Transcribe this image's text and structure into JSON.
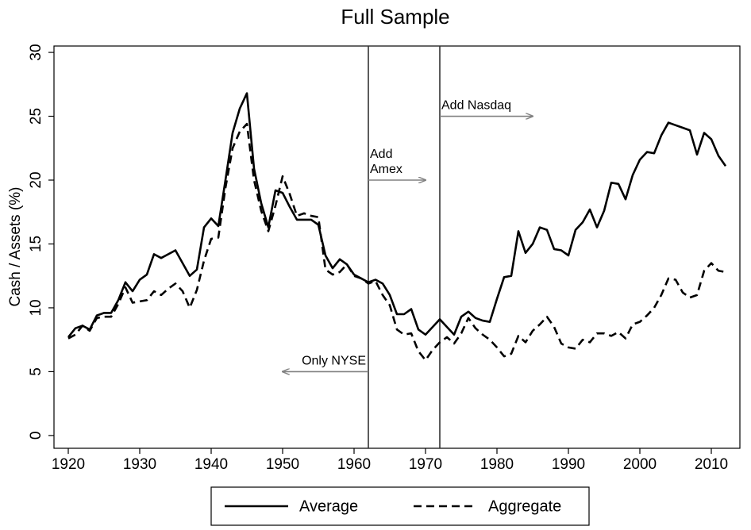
{
  "chart_data": {
    "type": "line",
    "title": "Full Sample",
    "y_label": "Cash / Assets (%)",
    "x": [
      1920,
      1921,
      1922,
      1923,
      1924,
      1925,
      1926,
      1927,
      1928,
      1929,
      1930,
      1931,
      1932,
      1933,
      1934,
      1935,
      1936,
      1937,
      1938,
      1939,
      1940,
      1941,
      1942,
      1943,
      1944,
      1945,
      1946,
      1947,
      1948,
      1949,
      1950,
      1951,
      1952,
      1953,
      1954,
      1955,
      1956,
      1957,
      1958,
      1959,
      1960,
      1961,
      1962,
      1963,
      1964,
      1965,
      1966,
      1967,
      1968,
      1969,
      1970,
      1971,
      1972,
      1973,
      1974,
      1975,
      1976,
      1977,
      1978,
      1979,
      1980,
      1981,
      1982,
      1983,
      1984,
      1985,
      1986,
      1987,
      1988,
      1989,
      1990,
      1991,
      1992,
      1993,
      1994,
      1995,
      1996,
      1997,
      1998,
      1999,
      2000,
      2001,
      2002,
      2003,
      2004,
      2005,
      2006,
      2007,
      2008,
      2009,
      2010,
      2011,
      2012
    ],
    "series": [
      {
        "name": "Average",
        "color": "#000000",
        "dash": "solid",
        "values": [
          7.7,
          8.4,
          8.6,
          8.3,
          9.4,
          9.6,
          9.6,
          10.6,
          12.0,
          11.3,
          12.2,
          12.6,
          14.2,
          13.9,
          14.2,
          14.5,
          13.5,
          12.5,
          13.0,
          16.3,
          17.0,
          16.4,
          20.0,
          23.7,
          25.6,
          26.8,
          20.9,
          18.2,
          16.3,
          19.2,
          19.0,
          17.9,
          16.9,
          16.9,
          16.9,
          16.5,
          14.1,
          13.1,
          13.8,
          13.4,
          12.6,
          12.3,
          12.0,
          12.2,
          11.9,
          11.0,
          9.5,
          9.5,
          9.9,
          8.3,
          7.9,
          8.5,
          9.1,
          8.5,
          7.9,
          9.3,
          9.7,
          9.2,
          9.0,
          8.9,
          10.7,
          12.4,
          12.5,
          16.0,
          14.3,
          15.0,
          16.3,
          16.1,
          14.6,
          14.5,
          14.1,
          16.1,
          16.7,
          17.7,
          16.3,
          17.6,
          19.8,
          19.7,
          18.5,
          20.4,
          21.6,
          22.2,
          22.1,
          23.5,
          24.5,
          24.3,
          24.1,
          23.9,
          22.0,
          23.7,
          23.2,
          21.9,
          21.1
        ]
      },
      {
        "name": "Aggregate",
        "color": "#000000",
        "dash": "dashed",
        "values": [
          7.6,
          7.9,
          8.6,
          8.2,
          9.2,
          9.3,
          9.3,
          10.3,
          11.6,
          10.4,
          10.5,
          10.6,
          11.3,
          11.0,
          11.5,
          11.9,
          11.3,
          10.0,
          11.4,
          13.7,
          15.4,
          15.5,
          19.4,
          22.5,
          23.8,
          24.4,
          20.0,
          17.6,
          16.0,
          18.0,
          20.3,
          18.9,
          17.2,
          17.4,
          17.2,
          17.1,
          13.0,
          12.6,
          12.8,
          13.4,
          12.5,
          12.3,
          11.9,
          12.1,
          11.0,
          10.2,
          8.3,
          7.9,
          8.0,
          6.6,
          5.9,
          6.7,
          7.3,
          7.7,
          7.2,
          8.0,
          9.2,
          8.4,
          7.9,
          7.5,
          6.9,
          6.2,
          6.4,
          7.8,
          7.3,
          8.2,
          8.7,
          9.3,
          8.5,
          7.2,
          6.9,
          6.8,
          7.5,
          7.3,
          8.0,
          8.0,
          7.8,
          8.1,
          7.6,
          8.7,
          8.9,
          9.4,
          10.0,
          11.0,
          12.3,
          12.2,
          11.2,
          10.8,
          11.0,
          12.9,
          13.5,
          12.9,
          12.8
        ]
      }
    ],
    "xlim": [
      1918,
      2014
    ],
    "xticks": [
      1920,
      1930,
      1940,
      1950,
      1960,
      1970,
      1980,
      1990,
      2000,
      2010
    ],
    "ylim": [
      -1,
      30.5
    ],
    "yticks": [
      0,
      5,
      10,
      15,
      20,
      25,
      30
    ],
    "vlines": [
      1962,
      1972
    ],
    "annotations": [
      {
        "lines": [
          "Only NYSE"
        ],
        "x": 1962,
        "x_end": 1950,
        "y": 5
      },
      {
        "lines": [
          "Add",
          "Amex"
        ],
        "x": 1962,
        "x_end": 1970,
        "y": 20
      },
      {
        "lines": [
          "Add Nasdaq"
        ],
        "x": 1972,
        "x_end": 1985,
        "y": 25
      }
    ],
    "annotation_color": "#808080",
    "legend": "bottom"
  }
}
